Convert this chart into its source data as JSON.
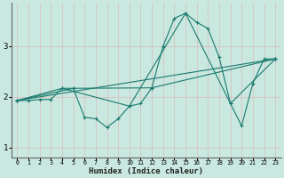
{
  "title": "",
  "xlabel": "Humidex (Indice chaleur)",
  "ylabel": "",
  "background_color": "#c8e8e0",
  "grid_color": "#b0d8cc",
  "line_color": "#1a7a6e",
  "xlim": [
    -0.5,
    23.5
  ],
  "ylim": [
    0.8,
    3.85
  ],
  "yticks": [
    1,
    2,
    3
  ],
  "xticks": [
    0,
    1,
    2,
    3,
    4,
    5,
    6,
    7,
    8,
    9,
    10,
    11,
    12,
    13,
    14,
    15,
    16,
    17,
    18,
    19,
    20,
    21,
    22,
    23
  ],
  "series": [
    [
      0,
      1.93
    ],
    [
      1,
      1.93
    ],
    [
      2,
      1.95
    ],
    [
      3,
      1.95
    ],
    [
      4,
      2.17
    ],
    [
      5,
      2.17
    ],
    [
      6,
      1.6
    ],
    [
      7,
      1.57
    ],
    [
      8,
      1.4
    ],
    [
      9,
      1.57
    ],
    [
      10,
      1.82
    ],
    [
      11,
      1.87
    ],
    [
      12,
      2.18
    ],
    [
      13,
      3.0
    ],
    [
      14,
      3.55
    ],
    [
      15,
      3.65
    ],
    [
      16,
      3.47
    ],
    [
      17,
      3.35
    ],
    [
      18,
      2.78
    ],
    [
      19,
      1.87
    ],
    [
      20,
      1.43
    ],
    [
      21,
      2.27
    ],
    [
      22,
      2.75
    ],
    [
      23,
      2.75
    ]
  ],
  "series2": [
    [
      0,
      1.93
    ],
    [
      23,
      2.75
    ]
  ],
  "series3": [
    [
      0,
      1.93
    ],
    [
      5,
      2.17
    ],
    [
      12,
      2.18
    ],
    [
      23,
      2.75
    ]
  ],
  "series4": [
    [
      0,
      1.93
    ],
    [
      4,
      2.17
    ],
    [
      10,
      1.82
    ],
    [
      15,
      3.65
    ],
    [
      19,
      1.87
    ],
    [
      23,
      2.75
    ]
  ]
}
